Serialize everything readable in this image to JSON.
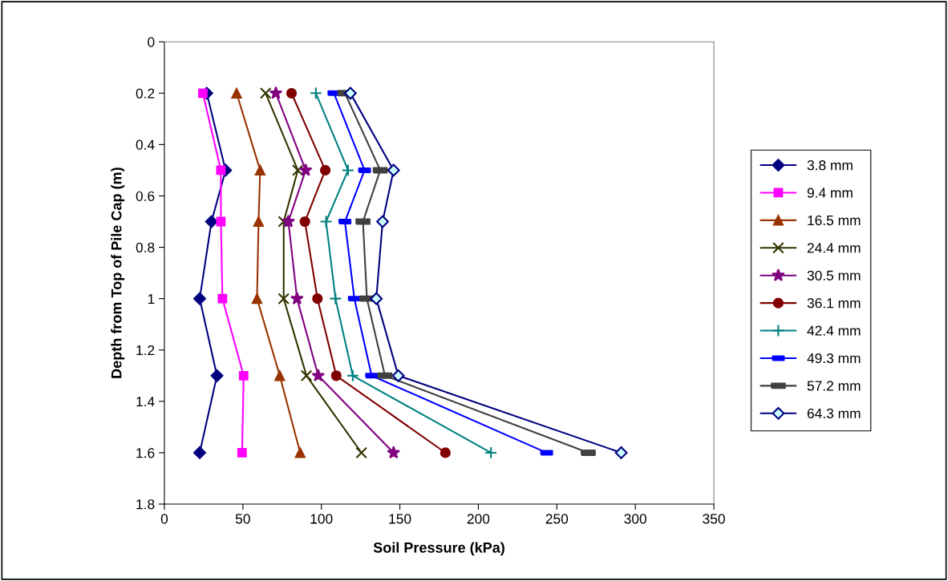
{
  "chart_data": {
    "type": "line",
    "xlabel": "Soil Pressure (kPa)",
    "ylabel": "Depth from Top of Pile Cap (m)",
    "xlim": [
      0,
      350
    ],
    "xticks": [
      0,
      50,
      100,
      150,
      200,
      250,
      300,
      350
    ],
    "ylim": [
      1.8,
      0
    ],
    "yticks": [
      0,
      0.2,
      0.4,
      0.6,
      0.8,
      1,
      1.2,
      1.4,
      1.6,
      1.8
    ],
    "grid": false,
    "legend": "right",
    "series": [
      {
        "name": "3.8 mm",
        "color": "#000080",
        "marker": "diamond",
        "x": [
          27,
          39,
          30,
          22.5,
          33.5,
          22.5
        ],
        "values": [
          0.2,
          0.5,
          0.7,
          1.0,
          1.3,
          1.6
        ]
      },
      {
        "name": "9.4 mm",
        "color": "#ff00ff",
        "marker": "square",
        "x": [
          24.5,
          36,
          36,
          37,
          50.5,
          49.5
        ],
        "values": [
          0.2,
          0.5,
          0.7,
          1.0,
          1.3,
          1.6
        ]
      },
      {
        "name": "16.5 mm",
        "color": "#993300",
        "marker": "triangle",
        "x": [
          46,
          61,
          60,
          59,
          73.5,
          86.5
        ],
        "values": [
          0.2,
          0.5,
          0.7,
          1.0,
          1.3,
          1.6
        ]
      },
      {
        "name": "24.4 mm",
        "color": "#333300",
        "marker": "cross",
        "x": [
          64.5,
          85,
          76,
          76,
          90.5,
          125.5
        ],
        "values": [
          0.2,
          0.5,
          0.7,
          1.0,
          1.3,
          1.6
        ]
      },
      {
        "name": "30.5 mm",
        "color": "#800080",
        "marker": "star",
        "x": [
          71,
          90,
          79,
          84.5,
          98,
          146
        ],
        "values": [
          0.2,
          0.5,
          0.7,
          1.0,
          1.3,
          1.6
        ]
      },
      {
        "name": "36.1 mm",
        "color": "#800000",
        "marker": "circle",
        "x": [
          81,
          102.5,
          89.5,
          97.5,
          109.5,
          179
        ],
        "values": [
          0.2,
          0.5,
          0.7,
          1.0,
          1.3,
          1.6
        ]
      },
      {
        "name": "42.4 mm",
        "color": "#008080",
        "marker": "cross",
        "x": [
          96.5,
          117,
          103,
          109,
          120,
          208
        ],
        "values": [
          0.2,
          0.5,
          0.7,
          1.0,
          1.3,
          1.6
        ]
      },
      {
        "name": "49.3 mm",
        "color": "#0000ff",
        "marker": "square",
        "x": [
          108,
          127.5,
          115,
          121,
          132,
          243.5
        ],
        "values": [
          0.2,
          0.5,
          0.7,
          1.0,
          1.3,
          1.6
        ]
      },
      {
        "name": "57.2 mm",
        "color": "#404040",
        "marker": "square",
        "x": [
          115,
          137.5,
          126.5,
          129,
          140.5,
          270
        ],
        "values": [
          0.2,
          0.5,
          0.7,
          1.0,
          1.3,
          1.6
        ]
      },
      {
        "name": "64.3 mm",
        "color": "#000080",
        "marker": "diamond",
        "x": [
          118.5,
          146,
          139,
          135,
          149,
          291
        ],
        "values": [
          0.2,
          0.5,
          0.7,
          1.0,
          1.3,
          1.6
        ]
      }
    ]
  }
}
